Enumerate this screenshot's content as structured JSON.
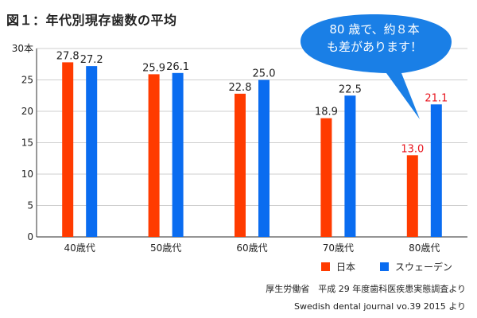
{
  "title": "図１：年代別現存歯数の平均",
  "callout": {
    "line1": "80 歳で、約８本",
    "line2": "も差があります！",
    "color": "#1a7fe6"
  },
  "sources": [
    "厚生労働省　平成 29 年度歯科医疾患実態調査より",
    "Swedish dental journal vo.39 2015 より"
  ],
  "chart_data": {
    "type": "bar",
    "title": "図１：年代別現存歯数の平均",
    "categories": [
      "40歳代",
      "50歳代",
      "60歳代",
      "70歳代",
      "80歳代"
    ],
    "series": [
      {
        "name": "日本",
        "values": [
          27.8,
          25.9,
          22.8,
          18.9,
          13.0
        ],
        "color": "#ff3b00"
      },
      {
        "name": "スウェーデン",
        "values": [
          27.2,
          26.1,
          25.0,
          22.5,
          21.1
        ],
        "color": "#0a6cf0"
      }
    ],
    "value_labels": [
      [
        "27.8",
        "25.9",
        "22.8",
        "18.9",
        "13.0"
      ],
      [
        "27.2",
        "26.1",
        "25.0",
        "22.5",
        "21.1"
      ]
    ],
    "highlight_label_color": "#e8161e",
    "yticks": [
      "0",
      "5",
      "10",
      "15",
      "20",
      "25",
      "30本"
    ],
    "ylim": [
      0,
      30
    ],
    "xlabel": "",
    "ylabel": "",
    "grid": true,
    "legend": "bottom-right"
  }
}
